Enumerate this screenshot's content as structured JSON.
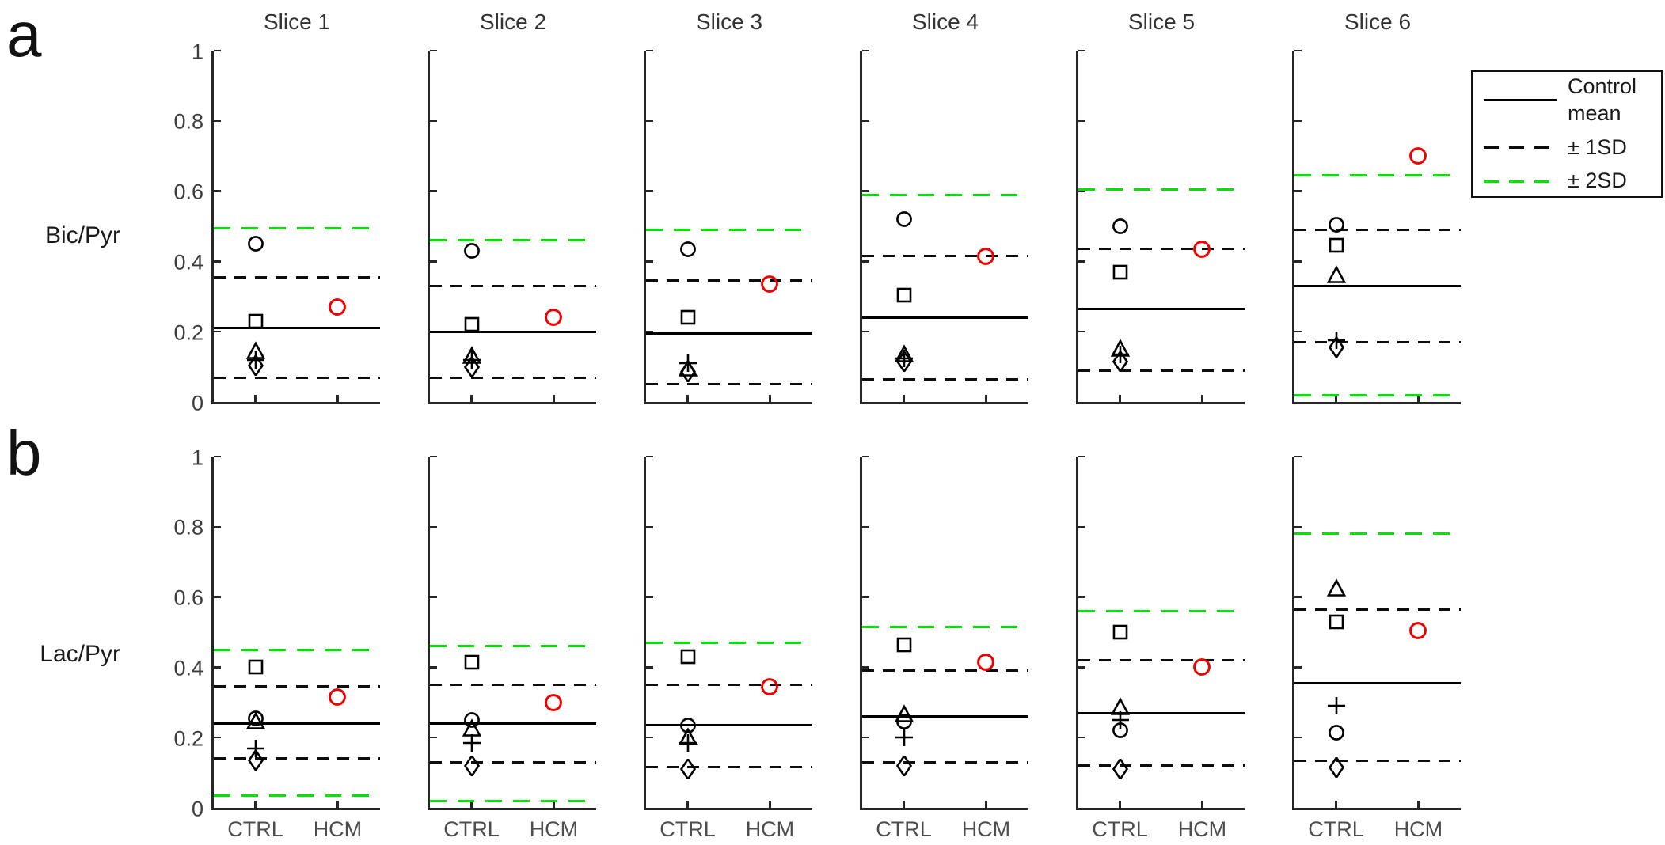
{
  "figure": {
    "colors": {
      "axis": "#262626",
      "marker_black": "#000000",
      "hcm_red": "#ee0000",
      "sd2_green": "#00e400",
      "mean_black": "#000000",
      "tick_text": "#3d3d3d",
      "category_text": "#4d4d4d",
      "title_text": "#333333"
    },
    "legend": {
      "items": [
        {
          "label": "Control mean",
          "style": "solid",
          "color": "#000000"
        },
        {
          "label": "± 1SD",
          "style": "dashed",
          "color": "#000000"
        },
        {
          "label": "± 2SD",
          "style": "dashed",
          "color": "#00e400"
        }
      ]
    }
  },
  "chart_data": {
    "type": "scatter",
    "x_categories": [
      "CTRL",
      "HCM"
    ],
    "y_ticks": [
      "0",
      "0.2",
      "0.4",
      "0.6",
      "0.8",
      "1"
    ],
    "y_tick_values": [
      0,
      0.2,
      0.4,
      0.6,
      0.8,
      1
    ],
    "ylim": [
      0,
      1
    ],
    "grid": false,
    "legend_position": "top-right",
    "slice_titles": [
      "Slice 1",
      "Slice 2",
      "Slice 3",
      "Slice 4",
      "Slice 5",
      "Slice 6"
    ],
    "ctrl_marker_shapes": [
      "circle",
      "square",
      "triangle",
      "plus",
      "diamond"
    ],
    "rows": [
      {
        "panel_letter": "a",
        "ylabel": "Bic/Pyr",
        "slices": [
          {
            "title": "Slice 1",
            "control_mean": 0.21,
            "sd1_upper": 0.355,
            "sd1_lower": 0.068,
            "sd2_upper": 0.495,
            "sd2_lower": null,
            "ctrl_points": {
              "circle": 0.45,
              "square": 0.23,
              "triangle": 0.144,
              "plus": 0.12,
              "diamond": 0.104
            },
            "hcm_point": 0.27
          },
          {
            "title": "Slice 2",
            "control_mean": 0.2,
            "sd1_upper": 0.33,
            "sd1_lower": 0.068,
            "sd2_upper": 0.46,
            "sd2_lower": null,
            "ctrl_points": {
              "circle": 0.43,
              "square": 0.22,
              "triangle": 0.13,
              "plus": 0.12,
              "diamond": 0.1
            },
            "hcm_point": 0.24
          },
          {
            "title": "Slice 3",
            "control_mean": 0.195,
            "sd1_upper": 0.345,
            "sd1_lower": 0.05,
            "sd2_upper": 0.49,
            "sd2_lower": null,
            "ctrl_points": {
              "circle": 0.435,
              "square": 0.24,
              "triangle": 0.095,
              "plus": 0.11,
              "diamond": 0.085
            },
            "hcm_point": 0.335
          },
          {
            "title": "Slice 4",
            "control_mean": 0.24,
            "sd1_upper": 0.415,
            "sd1_lower": 0.065,
            "sd2_upper": 0.59,
            "sd2_lower": null,
            "ctrl_points": {
              "circle": 0.52,
              "square": 0.305,
              "triangle": 0.135,
              "plus": 0.125,
              "diamond": 0.115
            },
            "hcm_point": 0.415
          },
          {
            "title": "Slice 5",
            "control_mean": 0.265,
            "sd1_upper": 0.435,
            "sd1_lower": 0.09,
            "sd2_upper": 0.605,
            "sd2_lower": null,
            "ctrl_points": {
              "circle": 0.5,
              "square": 0.37,
              "triangle": 0.15,
              "plus": 0.135,
              "diamond": 0.115
            },
            "hcm_point": 0.435
          },
          {
            "title": "Slice 6",
            "control_mean": 0.33,
            "sd1_upper": 0.49,
            "sd1_lower": 0.17,
            "sd2_upper": 0.645,
            "sd2_lower": 0.02,
            "ctrl_points": {
              "circle": 0.505,
              "square": 0.445,
              "triangle": 0.36,
              "plus": 0.175,
              "diamond": 0.155
            },
            "hcm_point": 0.7
          }
        ]
      },
      {
        "panel_letter": "b",
        "ylabel": "Lac/Pyr",
        "slices": [
          {
            "title": "Slice 1",
            "control_mean": 0.24,
            "sd1_upper": 0.345,
            "sd1_lower": 0.14,
            "sd2_upper": 0.45,
            "sd2_lower": 0.035,
            "ctrl_points": {
              "circle": 0.255,
              "square": 0.4,
              "triangle": 0.245,
              "plus": 0.17,
              "diamond": 0.135
            },
            "hcm_point": 0.315
          },
          {
            "title": "Slice 2",
            "control_mean": 0.24,
            "sd1_upper": 0.35,
            "sd1_lower": 0.13,
            "sd2_upper": 0.46,
            "sd2_lower": 0.02,
            "ctrl_points": {
              "circle": 0.25,
              "square": 0.415,
              "triangle": 0.225,
              "plus": 0.185,
              "diamond": 0.12
            },
            "hcm_point": 0.3
          },
          {
            "title": "Slice 3",
            "control_mean": 0.235,
            "sd1_upper": 0.35,
            "sd1_lower": 0.115,
            "sd2_upper": 0.47,
            "sd2_lower": null,
            "ctrl_points": {
              "circle": 0.235,
              "square": 0.43,
              "triangle": 0.2,
              "plus": 0.185,
              "diamond": 0.11
            },
            "hcm_point": 0.345
          },
          {
            "title": "Slice 4",
            "control_mean": 0.26,
            "sd1_upper": 0.39,
            "sd1_lower": 0.13,
            "sd2_upper": 0.515,
            "sd2_lower": null,
            "ctrl_points": {
              "circle": 0.245,
              "square": 0.465,
              "triangle": 0.265,
              "plus": 0.2,
              "diamond": 0.12
            },
            "hcm_point": 0.415
          },
          {
            "title": "Slice 5",
            "control_mean": 0.27,
            "sd1_upper": 0.42,
            "sd1_lower": 0.12,
            "sd2_upper": 0.56,
            "sd2_lower": null,
            "ctrl_points": {
              "circle": 0.22,
              "square": 0.5,
              "triangle": 0.285,
              "plus": 0.25,
              "diamond": 0.11
            },
            "hcm_point": 0.4
          },
          {
            "title": "Slice 6",
            "control_mean": 0.355,
            "sd1_upper": 0.565,
            "sd1_lower": 0.135,
            "sd2_upper": 0.78,
            "sd2_lower": null,
            "ctrl_points": {
              "circle": 0.215,
              "square": 0.53,
              "triangle": 0.625,
              "plus": 0.29,
              "diamond": 0.115
            },
            "hcm_point": 0.505
          }
        ]
      }
    ]
  }
}
